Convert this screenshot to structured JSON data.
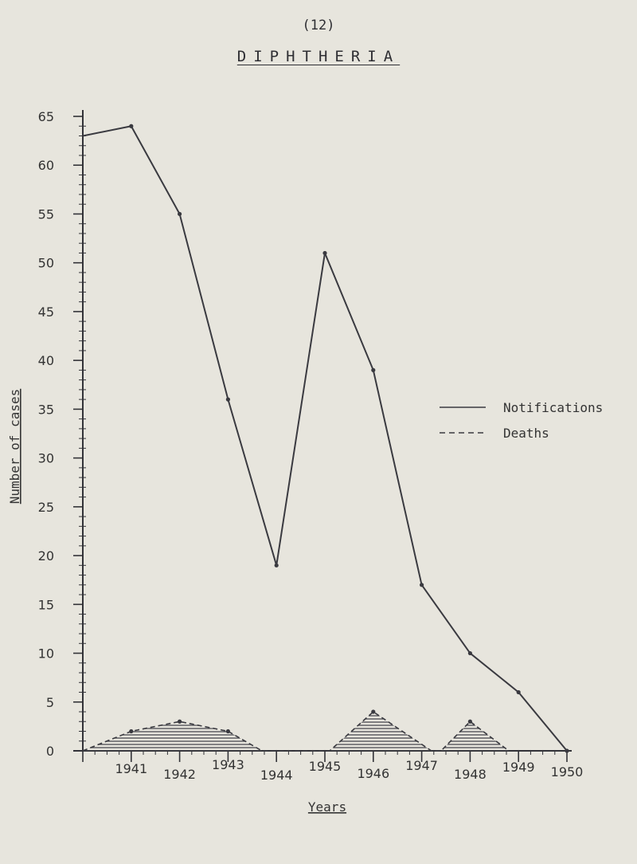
{
  "page_number": "(12)",
  "chart_data": {
    "type": "line",
    "title": "DIPHTHERIA",
    "xlabel": "Years",
    "ylabel": "Number of cases",
    "ylim": [
      0,
      65
    ],
    "y_ticks": [
      0,
      5,
      10,
      15,
      20,
      25,
      30,
      35,
      40,
      45,
      50,
      55,
      60,
      65
    ],
    "y_tick_labels": [
      "0",
      "5",
      "10",
      "15",
      "20",
      "25",
      "30",
      "35",
      "40",
      "45",
      "50",
      "55",
      "60",
      "65"
    ],
    "categories": [
      "1941",
      "1942",
      "1943",
      "1944",
      "1945",
      "1946",
      "1947",
      "1948",
      "1949",
      "1950"
    ],
    "grid": false,
    "legend_position": "right",
    "series": [
      {
        "name": "Notifications",
        "style": "solid",
        "color": "#3a3a40",
        "points": [
          {
            "x": 1940.0,
            "y": 63
          },
          {
            "x": 1941.0,
            "y": 64
          },
          {
            "x": 1942.0,
            "y": 55
          },
          {
            "x": 1943.0,
            "y": 36
          },
          {
            "x": 1944.0,
            "y": 19
          },
          {
            "x": 1945.0,
            "y": 51
          },
          {
            "x": 1946.0,
            "y": 39
          },
          {
            "x": 1947.0,
            "y": 17
          },
          {
            "x": 1948.0,
            "y": 10
          },
          {
            "x": 1949.0,
            "y": 6
          },
          {
            "x": 1950.0,
            "y": 0
          }
        ]
      },
      {
        "name": "Deaths",
        "style": "dashed",
        "color": "#3a3a40",
        "points": [
          {
            "x": 1940.0,
            "y": 0
          },
          {
            "x": 1941.0,
            "y": 2
          },
          {
            "x": 1942.0,
            "y": 3
          },
          {
            "x": 1943.0,
            "y": 2
          },
          {
            "x": 1943.7,
            "y": 0
          },
          {
            "x": 1945.1,
            "y": 0
          },
          {
            "x": 1946.0,
            "y": 4
          },
          {
            "x": 1947.2,
            "y": 0
          },
          {
            "x": 1947.4,
            "y": 0
          },
          {
            "x": 1948.0,
            "y": 3
          },
          {
            "x": 1948.8,
            "y": 0
          }
        ]
      }
    ]
  }
}
